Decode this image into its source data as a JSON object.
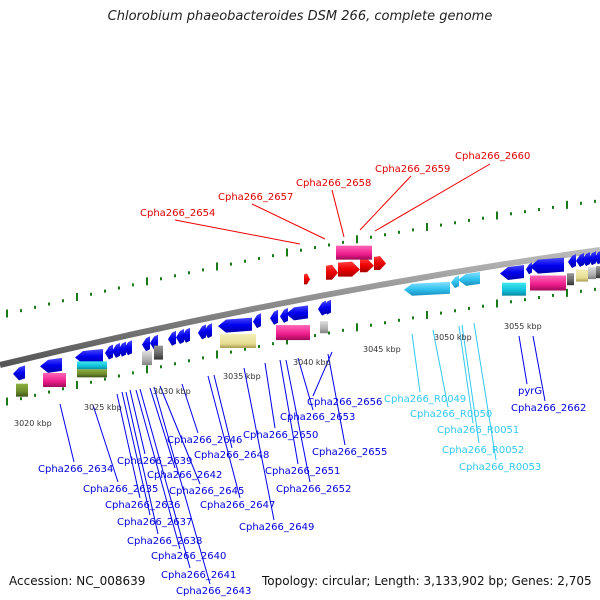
{
  "title": "Chlorobium phaeobacteroides DSM 266, complete genome",
  "footer": {
    "accession": "Accession: NC_008639",
    "info": "Topology: circular; Length: 3,133,902 bp; Genes: 2,705"
  },
  "colors": {
    "backbone": "#888888",
    "tick": "#1a7a1a",
    "cds": "#0000ee",
    "rna": "#33ccf0",
    "highlight": "#ee0000",
    "magenta": "#ee1c8c",
    "olive": "#6b8a2a",
    "khaki": "#e8e09a",
    "grey": "#aaaaaa",
    "darkgrey": "#666666",
    "cyan": "#20c8dc"
  },
  "scale_labels": [
    {
      "text": "3020 kbp"
    },
    {
      "text": "3025 kbp"
    },
    {
      "text": "3030 kbp"
    },
    {
      "text": "3035 kbp"
    },
    {
      "text": "3040 kbp"
    },
    {
      "text": "3045 kbp"
    },
    {
      "text": "3050 kbp"
    },
    {
      "text": "3055 kbp"
    }
  ],
  "top_labels": [
    {
      "text": "Cpha266_2654"
    },
    {
      "text": "Cpha266_2657"
    },
    {
      "text": "Cpha266_2658"
    },
    {
      "text": "Cpha266_2659"
    },
    {
      "text": "Cpha266_2660"
    }
  ],
  "bottom_labels": [
    {
      "text": "Cpha266_2634"
    },
    {
      "text": "Cpha266_2635"
    },
    {
      "text": "Cpha266_2636"
    },
    {
      "text": "Cpha266_2637"
    },
    {
      "text": "Cpha266_2638"
    },
    {
      "text": "Cpha266_2639"
    },
    {
      "text": "Cpha266_2640"
    },
    {
      "text": "Cpha266_2641"
    },
    {
      "text": "Cpha266_2642"
    },
    {
      "text": "Cpha266_2643"
    },
    {
      "text": "Cpha266_2645"
    },
    {
      "text": "Cpha266_2646"
    },
    {
      "text": "Cpha266_2647"
    },
    {
      "text": "Cpha266_2648"
    },
    {
      "text": "Cpha266_2649"
    },
    {
      "text": "Cpha266_2650"
    },
    {
      "text": "Cpha266_2651"
    },
    {
      "text": "Cpha266_2652"
    },
    {
      "text": "Cpha266_2653"
    },
    {
      "text": "Cpha266_2655"
    },
    {
      "text": "Cpha266_2656"
    },
    {
      "text": "Cpha266_R0049"
    },
    {
      "text": "Cpha266_R0050"
    },
    {
      "text": "Cpha266_R0051"
    },
    {
      "text": "Cpha266_R0052"
    },
    {
      "text": "Cpha266_R0053"
    },
    {
      "text": "pyrG"
    },
    {
      "text": "Cpha266_2662"
    }
  ]
}
